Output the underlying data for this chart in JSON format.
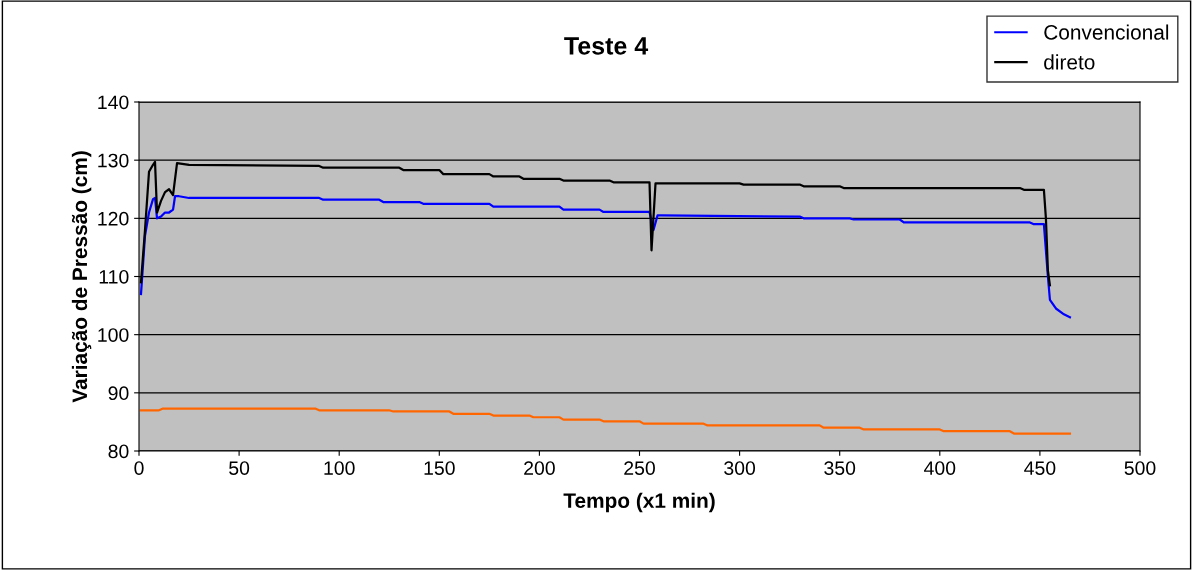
{
  "chart_data": {
    "type": "line",
    "title": "Teste 4",
    "xlabel": "Tempo (x1 min)",
    "ylabel": "Variação de Pressão (cm)",
    "xlim": [
      0,
      500
    ],
    "xticks": [
      0,
      50,
      100,
      150,
      200,
      250,
      300,
      350,
      400,
      450,
      500
    ],
    "ylim": [
      80,
      140
    ],
    "yticks": [
      80,
      90,
      100,
      110,
      120,
      130,
      140
    ],
    "grid": "y",
    "legend": "top right",
    "marker": "none",
    "line_style": "solid",
    "series": [
      {
        "name": "Convencional",
        "color": "#0000ff",
        "x": [
          1,
          3,
          5,
          7,
          8,
          9,
          11,
          13,
          15,
          17,
          18,
          20,
          25,
          45,
          90,
          92,
          120,
          122,
          140,
          142,
          175,
          177,
          210,
          212,
          230,
          232,
          255,
          257,
          259,
          261,
          330,
          332,
          355,
          357,
          380,
          382,
          445,
          447,
          452,
          454,
          455,
          458,
          462,
          465
        ],
        "values": [
          107,
          117,
          121,
          123.3,
          123.5,
          120,
          120.3,
          121,
          121,
          121.5,
          123.8,
          123.8,
          123.5,
          123.5,
          123.5,
          123.2,
          123.2,
          122.8,
          122.8,
          122.5,
          122.5,
          122,
          122,
          121.5,
          121.5,
          121.1,
          121.1,
          118,
          120.5,
          120.5,
          120.3,
          120,
          120,
          119.8,
          119.8,
          119.3,
          119.3,
          119,
          119,
          110,
          106,
          104.5,
          103.5,
          103
        ]
      },
      {
        "color": "#ff6600",
        "x": [
          1,
          10,
          12,
          88,
          90,
          125,
          127,
          155,
          157,
          175,
          177,
          195,
          197,
          210,
          212,
          230,
          232,
          250,
          252,
          282,
          284,
          340,
          342,
          360,
          362,
          400,
          402,
          435,
          437,
          465
        ],
        "values": [
          87,
          87,
          87.3,
          87.3,
          87,
          87,
          86.8,
          86.8,
          86.4,
          86.4,
          86.1,
          86.1,
          85.8,
          85.8,
          85.4,
          85.4,
          85.1,
          85.1,
          84.7,
          84.7,
          84.4,
          84.4,
          84,
          84,
          83.7,
          83.7,
          83.4,
          83.4,
          83,
          83
        ]
      },
      {
        "name": "direto",
        "color": "#000000",
        "x": [
          1,
          3,
          5,
          7,
          8,
          9,
          11,
          13,
          15,
          17,
          19,
          25,
          90,
          92,
          130,
          132,
          150,
          152,
          175,
          177,
          190,
          192,
          210,
          212,
          235,
          237,
          255,
          256,
          258,
          300,
          302,
          330,
          332,
          350,
          352,
          440,
          442,
          452,
          453,
          454,
          455
        ],
        "values": [
          109,
          118,
          128,
          129.2,
          129.7,
          121,
          123,
          124.5,
          125,
          124,
          129.5,
          129.2,
          129,
          128.7,
          128.7,
          128.3,
          128.3,
          127.6,
          127.6,
          127.2,
          127.2,
          126.8,
          126.8,
          126.5,
          126.5,
          126.2,
          126.2,
          114.5,
          126,
          126,
          125.8,
          125.8,
          125.5,
          125.5,
          125.2,
          125.2,
          124.9,
          124.9,
          120,
          111,
          108.5
        ]
      }
    ]
  }
}
